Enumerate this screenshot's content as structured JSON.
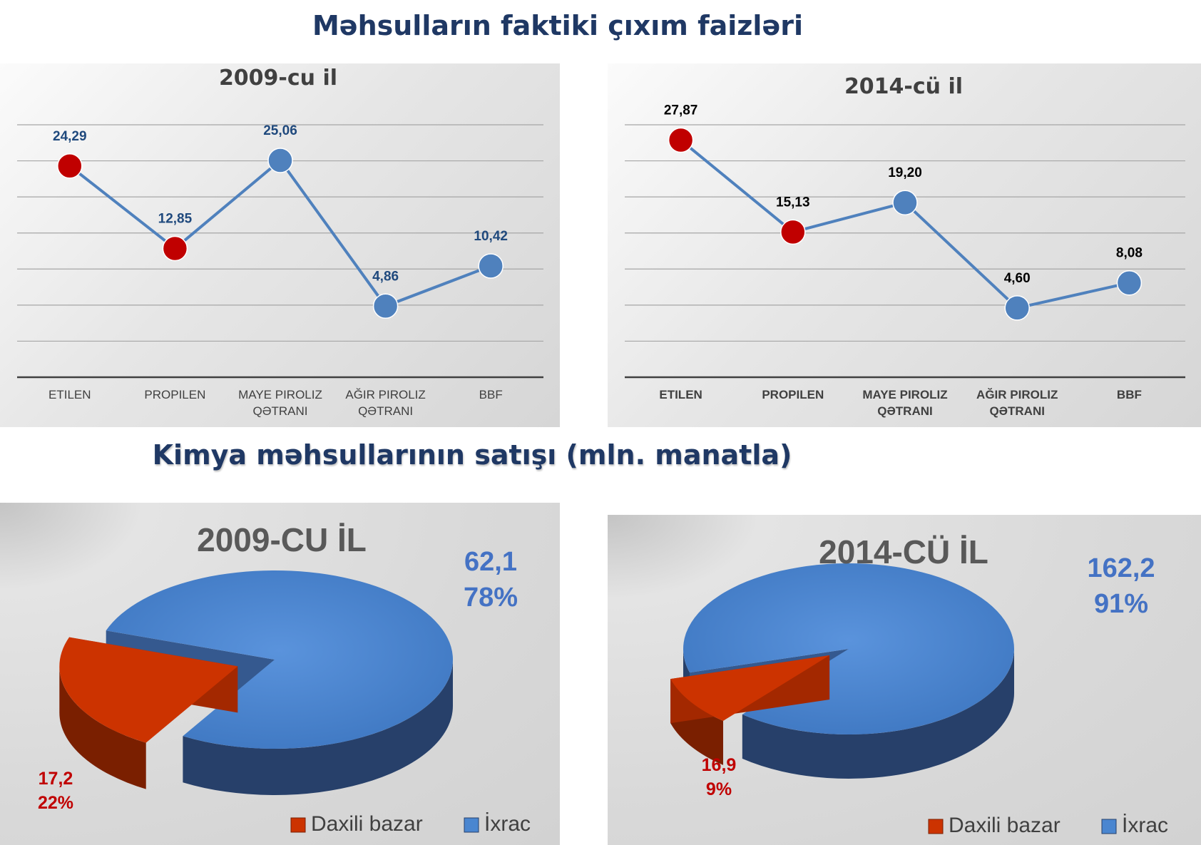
{
  "headings": {
    "top": "Məhsulların faktiki çıxım faizləri",
    "bottom": "Kimya  məhsullarının satışı (mln. manatla)"
  },
  "colors": {
    "highlight": "#c00000",
    "series": "#4f81bd",
    "label_dark_blue": "#1f497d",
    "pie_red": "#cc3300",
    "pie_blue": "#4a86d0"
  },
  "chart_data": [
    {
      "type": "line",
      "title": "2009-cu il",
      "categories": [
        "ETILEN",
        "PROPILEN",
        "MAYE PIROLIZ QƏTRANI",
        "AĞIR PIROLIZ QƏTRANI",
        "BBF"
      ],
      "category_lines": [
        [
          "ETILEN"
        ],
        [
          "PROPILEN"
        ],
        [
          "MAYE PIROLIZ",
          "QƏTRANI"
        ],
        [
          "AĞIR PIROLIZ",
          "QƏTRANI"
        ],
        [
          "BBF"
        ]
      ],
      "values": [
        24.29,
        12.85,
        25.06,
        4.86,
        10.42
      ],
      "value_labels": [
        "24,29",
        "12,85",
        "25,06",
        "4,86",
        "10,42"
      ],
      "highlighted": [
        true,
        true,
        false,
        false,
        false
      ],
      "ylim": [
        -5,
        30
      ],
      "grid": true
    },
    {
      "type": "line",
      "title": "2014-cü il",
      "categories": [
        "ETILEN",
        "PROPILEN",
        "MAYE PIROLIZ QƏTRANI",
        "AĞIR PIROLIZ QƏTRANI",
        "BBF"
      ],
      "category_lines": [
        [
          "ETILEN"
        ],
        [
          "PROPILEN"
        ],
        [
          "MAYE PIROLIZ",
          "QƏTRANI"
        ],
        [
          "AĞIR PIROLIZ",
          "QƏTRANI"
        ],
        [
          "BBF"
        ]
      ],
      "values": [
        27.87,
        15.13,
        19.2,
        4.6,
        8.08
      ],
      "value_labels": [
        "27,87",
        "15,13",
        "19,20",
        "4,60",
        "8,08"
      ],
      "highlighted": [
        true,
        true,
        false,
        false,
        false
      ],
      "ylim": [
        -5,
        30
      ],
      "grid": true
    },
    {
      "type": "pie",
      "title": "2009-CU İL",
      "slices": [
        {
          "name": "Daxili bazar",
          "value": 17.2,
          "value_label": "17,2",
          "percent_label": "22%",
          "percent": 22
        },
        {
          "name": "İxrac",
          "value": 62.1,
          "value_label": "62,1",
          "percent_label": "78%",
          "percent": 78
        }
      ],
      "legend": "bottom-right"
    },
    {
      "type": "pie",
      "title": "2014-CÜ İL",
      "slices": [
        {
          "name": "Daxili bazar",
          "value": 16.9,
          "value_label": "16,9",
          "percent_label": "9%",
          "percent": 9
        },
        {
          "name": "İxrac",
          "value": 162.2,
          "value_label": "162,2",
          "percent_label": "91%",
          "percent": 91
        }
      ],
      "legend": "bottom-right"
    }
  ]
}
